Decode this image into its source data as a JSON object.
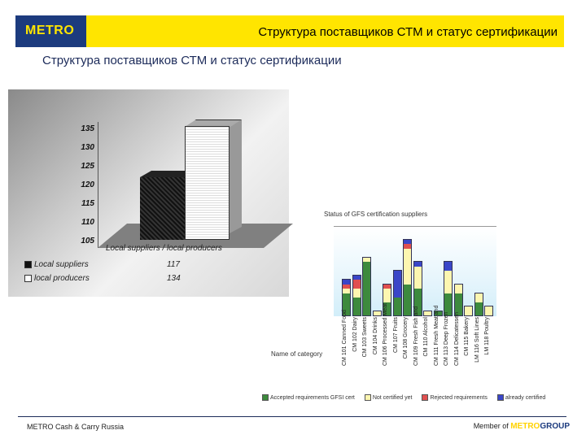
{
  "header": {
    "logo": "METRO",
    "title": "Структура поставщиков СТМ и статус сертификации"
  },
  "subtitle": "Структура поставщиков СТМ и статус сертификации",
  "colors": {
    "brand_blue": "#1c3b7e",
    "brand_yellow": "#ffe500",
    "accepted": "#3d8a3d",
    "not_certified": "#fdf6b0",
    "rejected": "#e05050",
    "already_certified": "#3a46c8"
  },
  "chart_data": [
    {
      "type": "bar",
      "title": "",
      "categories": [
        "Local suppliers / local producers"
      ],
      "series": [
        {
          "name": "Local suppliers",
          "values": [
            117
          ]
        },
        {
          "name": "local producers",
          "values": [
            134
          ]
        }
      ],
      "xlabel": "Local suppliers / local producers",
      "ylabel": "",
      "ylim": [
        105,
        135
      ],
      "yticks": [
        135,
        130,
        125,
        120,
        115,
        110,
        105
      ],
      "legend_position": "bottom-table",
      "grid": true
    },
    {
      "type": "bar",
      "stacked": true,
      "title": "Status of GFS certification suppliers",
      "xlabel": "Name of category",
      "categories": [
        "CM 101 Canned Food",
        "CM 102 Dairy",
        "CM 103 Sweets",
        "CM 104 Drinks",
        "CM 106 Processed Meat",
        "CM 107 Fruits",
        "CM 108 Grocery",
        "CM 109 Fresh Fish and",
        "CM 110 Alcohol",
        "CM 111 Fresh Meat and",
        "CM 113 Deep Frozen",
        "CM 114 Delicatessen",
        "CM 115 Bakery",
        "LM 116 Soft Lines",
        "LM 118 Poultry"
      ],
      "series": [
        {
          "name": "Accepted requirements GFSI cert",
          "values": [
            5,
            4,
            12,
            0,
            3,
            4,
            7,
            6,
            0,
            1,
            5,
            5,
            0,
            3,
            0
          ]
        },
        {
          "name": "Not certified yet",
          "values": [
            1,
            2,
            1,
            1,
            3,
            0,
            8,
            5,
            1,
            0,
            5,
            2,
            2,
            2,
            2
          ]
        },
        {
          "name": "Rejected requirements",
          "values": [
            1,
            2,
            0,
            0,
            1,
            0,
            1,
            0,
            0,
            0,
            0,
            0,
            0,
            0,
            0
          ]
        },
        {
          "name": "already certified",
          "values": [
            1,
            1,
            0,
            0,
            0,
            6,
            1,
            1,
            0,
            0,
            2,
            0,
            0,
            0,
            0
          ]
        }
      ],
      "legend_position": "bottom"
    }
  ],
  "chart1_labels": {
    "yticks": [
      "135",
      "130",
      "125",
      "120",
      "115",
      "110",
      "105"
    ],
    "xlabel": "Local suppliers / local producers",
    "legend": [
      {
        "label": "Local suppliers",
        "value": "117"
      },
      {
        "label": "local producers",
        "value": "134"
      }
    ]
  },
  "chart2_labels": {
    "title": "Status of GFS certification suppliers",
    "xlabel": "Name of category",
    "legend": [
      "Accepted requirements GFSI cert",
      "Not certified yet",
      "Rejected requirements",
      "already certified"
    ]
  },
  "footer": {
    "left": "METRO Cash & Carry Russia",
    "member_of": "Member of",
    "metro": "METRO",
    "group": "GROUP"
  }
}
